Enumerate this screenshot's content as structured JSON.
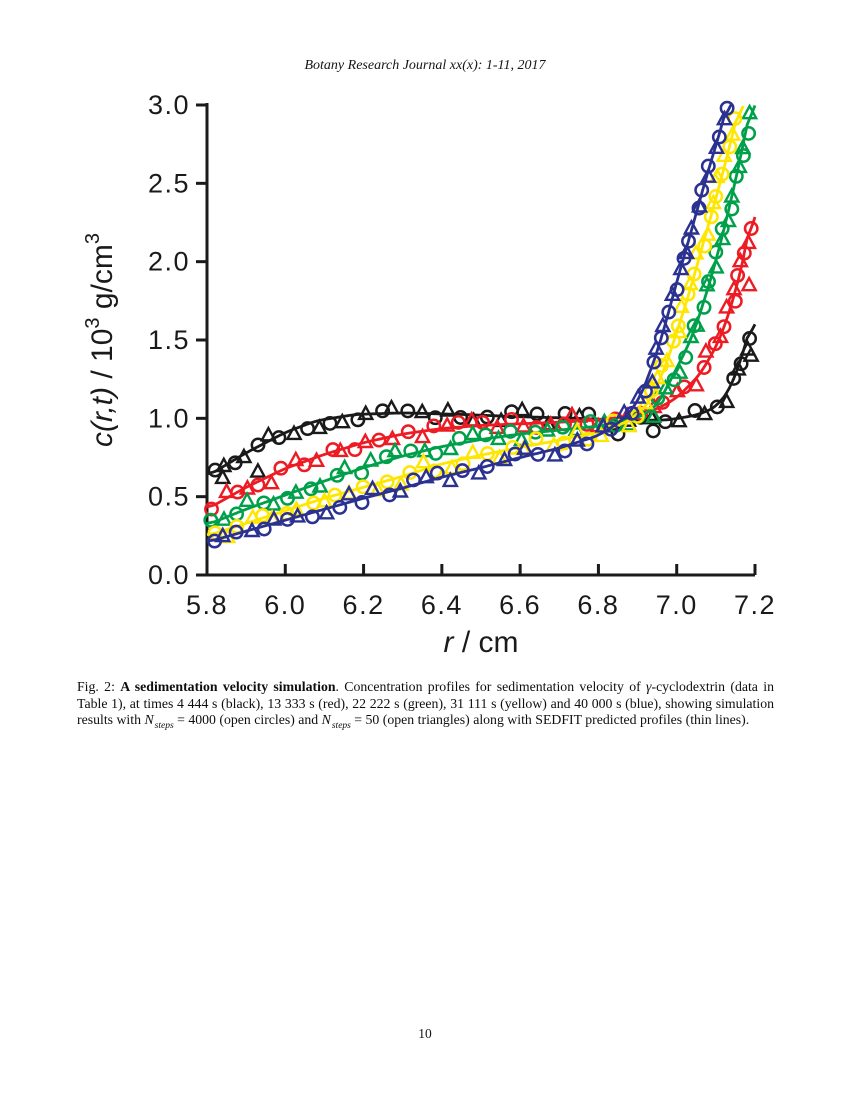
{
  "page": {
    "header": "Botany Research Journal xx(x): 1-11, 2017",
    "page_number": "10"
  },
  "figure_caption": {
    "segments": [
      {
        "t": "Fig. 2: "
      },
      {
        "t": "A sedimentation velocity simulation",
        "b": true
      },
      {
        "t": ". Concentration profiles for sedimentation velocity of "
      },
      {
        "t": "γ",
        "i": true
      },
      {
        "t": "-cyclodextrin (data in Table 1), at times 4 444 s (black), 13 333 s (red), 22 222 s (green), 31 111 s (yellow) and 40 000 s (blue), showing simulation results with "
      },
      {
        "t": "N",
        "i": true
      },
      {
        "t": "steps",
        "i": true,
        "sub": true
      },
      {
        "t": " = 4000 (open circles) and "
      },
      {
        "t": "N",
        "i": true
      },
      {
        "t": "steps",
        "i": true,
        "sub": true
      },
      {
        "t": " = 50 (open triangles) along with SEDFIT predicted profiles (thin lines)."
      }
    ]
  },
  "chart_data": {
    "type": "scatter",
    "title": "",
    "xlabel": "r / cm",
    "ylabel": "c(r,t) / 10^3 g/cm^3",
    "xlabel_parts": [
      {
        "t": "r",
        "i": true
      },
      {
        "t": " / cm"
      }
    ],
    "ylabel_parts": [
      {
        "t": "c(r,t)",
        "i": true
      },
      {
        "t": " / 10"
      },
      {
        "t": "3",
        "sup": true
      },
      {
        "t": " g/cm"
      },
      {
        "t": "3",
        "sup": true
      }
    ],
    "xlim": [
      5.8,
      7.2
    ],
    "ylim": [
      0.0,
      3.0
    ],
    "xtick_labels": [
      "5.8",
      "6.0",
      "6.2",
      "6.4",
      "6.6",
      "6.8",
      "7.0",
      "7.2"
    ],
    "ytick_labels": [
      "0.0",
      "0.5",
      "1.0",
      "1.5",
      "2.0",
      "2.5",
      "3.0"
    ],
    "axis_color": "#1a1a1a",
    "grid": false,
    "legend": "none (colors identified in caption)",
    "marker_meaning": {
      "open_circle": "Nsteps = 4000 simulation",
      "open_triangle": "Nsteps = 50 simulation",
      "thin_line": "SEDFIT predicted profile"
    },
    "series": [
      {
        "name": "4 444 s",
        "legend": "black",
        "color": "#1a1a1a",
        "line": [
          [
            5.8,
            0.63
          ],
          [
            5.9,
            0.78
          ],
          [
            6.0,
            0.91
          ],
          [
            6.08,
            0.985
          ],
          [
            6.18,
            1.025
          ],
          [
            6.3,
            1.035
          ],
          [
            6.45,
            1.025
          ],
          [
            6.6,
            1.01
          ],
          [
            6.75,
            1.0
          ],
          [
            6.88,
            0.985
          ],
          [
            6.98,
            0.99
          ],
          [
            7.05,
            1.02
          ],
          [
            7.1,
            1.07
          ],
          [
            7.14,
            1.2
          ],
          [
            7.18,
            1.5
          ],
          [
            7.2,
            1.7
          ]
        ],
        "circle_outliers": [
          [
            6.85,
            0.9
          ],
          [
            6.94,
            0.92
          ]
        ],
        "triangle_outliers": [
          [
            5.84,
            0.62
          ],
          [
            5.93,
            0.66
          ],
          [
            7.19,
            1.4
          ]
        ]
      },
      {
        "name": "13 333 s",
        "legend": "red",
        "color": "#ed1c24",
        "line": [
          [
            5.8,
            0.42
          ],
          [
            5.9,
            0.56
          ],
          [
            6.0,
            0.68
          ],
          [
            6.1,
            0.77
          ],
          [
            6.2,
            0.845
          ],
          [
            6.3,
            0.9
          ],
          [
            6.4,
            0.935
          ],
          [
            6.5,
            0.955
          ],
          [
            6.6,
            0.965
          ],
          [
            6.7,
            0.975
          ],
          [
            6.8,
            0.99
          ],
          [
            6.9,
            1.02
          ],
          [
            6.95,
            1.06
          ],
          [
            7.0,
            1.13
          ],
          [
            7.06,
            1.28
          ],
          [
            7.11,
            1.5
          ],
          [
            7.15,
            1.8
          ],
          [
            7.18,
            2.12
          ],
          [
            7.2,
            2.45
          ]
        ],
        "circle_outliers": [],
        "triangle_outliers": [
          [
            7.185,
            1.85
          ]
        ]
      },
      {
        "name": "22 222 s",
        "legend": "green",
        "color": "#00a04b",
        "line": [
          [
            5.8,
            0.32
          ],
          [
            5.9,
            0.42
          ],
          [
            6.0,
            0.51
          ],
          [
            6.1,
            0.6
          ],
          [
            6.2,
            0.685
          ],
          [
            6.3,
            0.76
          ],
          [
            6.4,
            0.82
          ],
          [
            6.5,
            0.865
          ],
          [
            6.6,
            0.9
          ],
          [
            6.7,
            0.925
          ],
          [
            6.8,
            0.95
          ],
          [
            6.9,
            1.0
          ],
          [
            6.95,
            1.08
          ],
          [
            7.0,
            1.32
          ],
          [
            7.04,
            1.52
          ],
          [
            7.07,
            1.75
          ],
          [
            7.1,
            2.0
          ],
          [
            7.14,
            2.4
          ],
          [
            7.17,
            2.75
          ],
          [
            7.2,
            3.12
          ]
        ],
        "circle_outliers": [],
        "triangle_outliers": []
      },
      {
        "name": "31 111 s",
        "legend": "yellow",
        "color": "#ffe600",
        "line": [
          [
            5.8,
            0.25
          ],
          [
            5.9,
            0.33
          ],
          [
            6.0,
            0.41
          ],
          [
            6.1,
            0.49
          ],
          [
            6.2,
            0.56
          ],
          [
            6.3,
            0.63
          ],
          [
            6.4,
            0.71
          ],
          [
            6.5,
            0.765
          ],
          [
            6.6,
            0.815
          ],
          [
            6.7,
            0.86
          ],
          [
            6.8,
            0.91
          ],
          [
            6.88,
            0.985
          ],
          [
            6.93,
            1.1
          ],
          [
            6.97,
            1.32
          ],
          [
            7.0,
            1.55
          ],
          [
            7.03,
            1.78
          ],
          [
            7.06,
            2.05
          ],
          [
            7.1,
            2.4
          ],
          [
            7.14,
            2.78
          ],
          [
            7.17,
            3.1
          ]
        ],
        "circle_outliers": [],
        "triangle_outliers": []
      },
      {
        "name": "40 000 s",
        "legend": "blue",
        "color": "#2b3190",
        "line": [
          [
            5.8,
            0.21
          ],
          [
            5.9,
            0.28
          ],
          [
            6.0,
            0.35
          ],
          [
            6.1,
            0.42
          ],
          [
            6.2,
            0.49
          ],
          [
            6.3,
            0.555
          ],
          [
            6.4,
            0.625
          ],
          [
            6.5,
            0.685
          ],
          [
            6.6,
            0.75
          ],
          [
            6.7,
            0.81
          ],
          [
            6.8,
            0.89
          ],
          [
            6.86,
            0.985
          ],
          [
            6.9,
            1.1
          ],
          [
            6.93,
            1.28
          ],
          [
            6.96,
            1.5
          ],
          [
            7.0,
            1.87
          ],
          [
            7.04,
            2.22
          ],
          [
            7.08,
            2.58
          ],
          [
            7.11,
            2.82
          ],
          [
            7.14,
            3.1
          ]
        ],
        "circle_outliers": [],
        "triangle_outliers": []
      }
    ]
  }
}
